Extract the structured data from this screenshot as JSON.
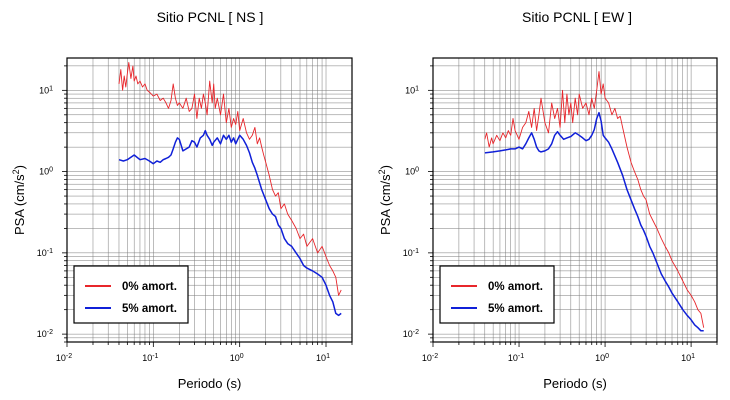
{
  "chart_data": [
    {
      "type": "line",
      "title": "Sitio PCNL [ NS ]",
      "xlabel": "Periodo (s)",
      "ylabel_main": "PSA (cm/s",
      "ylabel_sup": "2",
      "ylabel_end": ")",
      "x_scale": "log",
      "y_scale": "log",
      "xlim": [
        0.01,
        20
      ],
      "ylim": [
        0.008,
        25
      ],
      "grid": true,
      "legend_position": "bottom-left",
      "x_ticks": [
        {
          "base": "10",
          "exp": "-2",
          "value": 0.01
        },
        {
          "base": "10",
          "exp": "-1",
          "value": 0.1
        },
        {
          "base": "10",
          "exp": "0",
          "value": 1
        },
        {
          "base": "10",
          "exp": "1",
          "value": 10
        }
      ],
      "y_ticks": [
        {
          "base": "10",
          "exp": "-2",
          "value": 0.01
        },
        {
          "base": "10",
          "exp": "-1",
          "value": 0.1
        },
        {
          "base": "10",
          "exp": "0",
          "value": 1
        },
        {
          "base": "10",
          "exp": "1",
          "value": 10
        }
      ],
      "series": [
        {
          "name": "0% amort.",
          "color": "#e8262b",
          "width": 0.9,
          "x": [
            0.04,
            0.042,
            0.044,
            0.046,
            0.048,
            0.05,
            0.052,
            0.055,
            0.058,
            0.06,
            0.063,
            0.066,
            0.07,
            0.075,
            0.08,
            0.085,
            0.09,
            0.1,
            0.11,
            0.12,
            0.13,
            0.14,
            0.15,
            0.16,
            0.17,
            0.18,
            0.19,
            0.2,
            0.22,
            0.24,
            0.26,
            0.28,
            0.3,
            0.32,
            0.34,
            0.36,
            0.38,
            0.4,
            0.42,
            0.45,
            0.48,
            0.5,
            0.52,
            0.55,
            0.6,
            0.65,
            0.7,
            0.75,
            0.8,
            0.85,
            0.9,
            0.95,
            1.0,
            1.1,
            1.2,
            1.3,
            1.4,
            1.5,
            1.6,
            1.7,
            1.8,
            1.9,
            2.0,
            2.2,
            2.4,
            2.6,
            2.8,
            3.0,
            3.3,
            3.6,
            4.0,
            4.5,
            5.0,
            5.5,
            6.0,
            7.0,
            8.0,
            9.0,
            10.0,
            11.0,
            12.0,
            13.0,
            14.0,
            15.0
          ],
          "y": [
            12,
            18,
            10,
            15,
            11,
            16,
            22,
            14,
            20,
            13,
            15,
            12,
            13,
            11,
            12,
            10,
            9.5,
            8.5,
            9,
            7.5,
            8,
            7,
            6,
            7.5,
            12,
            8,
            6.5,
            7,
            6,
            8,
            5.5,
            6,
            9,
            4.5,
            8,
            6,
            9,
            7,
            5,
            13,
            7,
            12,
            6,
            8,
            5,
            9,
            4,
            6,
            3.5,
            4.5,
            3.8,
            5.5,
            3.2,
            4.5,
            3,
            2.5,
            2.8,
            3.5,
            2.2,
            2.6,
            2,
            1.6,
            1.3,
            0.9,
            0.6,
            0.5,
            0.55,
            0.35,
            0.4,
            0.3,
            0.25,
            0.2,
            0.15,
            0.17,
            0.12,
            0.15,
            0.1,
            0.12,
            0.09,
            0.07,
            0.06,
            0.05,
            0.03,
            0.035
          ]
        },
        {
          "name": "5% amort.",
          "color": "#1020d8",
          "width": 1.5,
          "x": [
            0.04,
            0.045,
            0.05,
            0.055,
            0.06,
            0.07,
            0.08,
            0.09,
            0.1,
            0.11,
            0.12,
            0.13,
            0.14,
            0.15,
            0.16,
            0.17,
            0.18,
            0.19,
            0.2,
            0.22,
            0.24,
            0.26,
            0.28,
            0.3,
            0.32,
            0.35,
            0.38,
            0.4,
            0.42,
            0.45,
            0.48,
            0.5,
            0.55,
            0.6,
            0.65,
            0.7,
            0.75,
            0.8,
            0.85,
            0.9,
            1.0,
            1.1,
            1.2,
            1.3,
            1.4,
            1.5,
            1.6,
            1.8,
            2.0,
            2.2,
            2.4,
            2.6,
            2.8,
            3.0,
            3.3,
            3.6,
            4.0,
            4.5,
            5.0,
            5.5,
            6.0,
            7.0,
            8.0,
            9.0,
            10.0,
            11.0,
            12.0,
            13.0,
            14.0,
            15.0
          ],
          "y": [
            1.4,
            1.35,
            1.4,
            1.5,
            1.6,
            1.4,
            1.45,
            1.35,
            1.25,
            1.35,
            1.3,
            1.4,
            1.45,
            1.5,
            1.6,
            1.9,
            2.3,
            2.6,
            2.5,
            1.8,
            1.9,
            2.0,
            2.4,
            2.3,
            2.0,
            2.6,
            2.8,
            3.2,
            2.8,
            2.5,
            2.1,
            2.3,
            2.6,
            2.2,
            2.8,
            2.5,
            2.8,
            2.3,
            2.6,
            2.2,
            2.8,
            2.5,
            2.1,
            1.7,
            1.3,
            1.1,
            0.9,
            0.6,
            0.45,
            0.35,
            0.3,
            0.28,
            0.22,
            0.2,
            0.15,
            0.13,
            0.12,
            0.1,
            0.085,
            0.07,
            0.065,
            0.06,
            0.055,
            0.05,
            0.04,
            0.03,
            0.025,
            0.018,
            0.017,
            0.018
          ]
        }
      ]
    },
    {
      "type": "line",
      "title": "Sitio PCNL [ EW ]",
      "xlabel": "Periodo (s)",
      "ylabel_main": "PSA (cm/s",
      "ylabel_sup": "2",
      "ylabel_end": ")",
      "x_scale": "log",
      "y_scale": "log",
      "xlim": [
        0.01,
        20
      ],
      "ylim": [
        0.008,
        25
      ],
      "grid": true,
      "legend_position": "bottom-left",
      "x_ticks": [
        {
          "base": "10",
          "exp": "-2",
          "value": 0.01
        },
        {
          "base": "10",
          "exp": "-1",
          "value": 0.1
        },
        {
          "base": "10",
          "exp": "0",
          "value": 1
        },
        {
          "base": "10",
          "exp": "1",
          "value": 10
        }
      ],
      "y_ticks": [
        {
          "base": "10",
          "exp": "-2",
          "value": 0.01
        },
        {
          "base": "10",
          "exp": "-1",
          "value": 0.1
        },
        {
          "base": "10",
          "exp": "0",
          "value": 1
        },
        {
          "base": "10",
          "exp": "1",
          "value": 10
        }
      ],
      "series": [
        {
          "name": "0% amort.",
          "color": "#e8262b",
          "width": 0.9,
          "x": [
            0.04,
            0.042,
            0.045,
            0.048,
            0.05,
            0.055,
            0.06,
            0.065,
            0.07,
            0.075,
            0.08,
            0.085,
            0.09,
            0.1,
            0.11,
            0.12,
            0.13,
            0.14,
            0.15,
            0.16,
            0.17,
            0.18,
            0.2,
            0.22,
            0.24,
            0.26,
            0.28,
            0.3,
            0.32,
            0.34,
            0.36,
            0.38,
            0.4,
            0.42,
            0.45,
            0.48,
            0.5,
            0.55,
            0.6,
            0.65,
            0.7,
            0.75,
            0.8,
            0.85,
            0.9,
            0.95,
            1.0,
            1.1,
            1.2,
            1.3,
            1.4,
            1.5,
            1.6,
            1.8,
            2.0,
            2.2,
            2.4,
            2.6,
            2.8,
            3.0,
            3.3,
            3.6,
            4.0,
            4.5,
            5.0,
            5.5,
            6.0,
            7.0,
            8.0,
            9.0,
            10.0,
            11.0,
            12.0,
            13.0,
            14.0
          ],
          "y": [
            2.5,
            3.0,
            2.0,
            2.6,
            2.2,
            2.8,
            2.4,
            3.0,
            2.6,
            3.2,
            2.8,
            4.5,
            3.2,
            2.5,
            3.5,
            4,
            5.5,
            3.5,
            6,
            3.2,
            5,
            8,
            4,
            3,
            7,
            4.5,
            6,
            3.5,
            10,
            4,
            9,
            5,
            7,
            4,
            8,
            5,
            9,
            6,
            7,
            5,
            8,
            6,
            10,
            17,
            9,
            12,
            8,
            7,
            5,
            6,
            4.5,
            4.8,
            3.5,
            2,
            1.3,
            1.0,
            0.8,
            0.6,
            0.5,
            0.45,
            0.3,
            0.25,
            0.2,
            0.15,
            0.12,
            0.1,
            0.08,
            0.06,
            0.045,
            0.035,
            0.03,
            0.025,
            0.02,
            0.018,
            0.012
          ]
        },
        {
          "name": "5% amort.",
          "color": "#1020d8",
          "width": 1.5,
          "x": [
            0.04,
            0.05,
            0.06,
            0.07,
            0.08,
            0.09,
            0.1,
            0.11,
            0.12,
            0.13,
            0.14,
            0.15,
            0.16,
            0.17,
            0.18,
            0.2,
            0.22,
            0.24,
            0.26,
            0.28,
            0.3,
            0.33,
            0.36,
            0.4,
            0.45,
            0.5,
            0.55,
            0.6,
            0.65,
            0.7,
            0.75,
            0.8,
            0.85,
            0.9,
            0.95,
            1.0,
            1.1,
            1.2,
            1.4,
            1.6,
            1.8,
            2.0,
            2.2,
            2.4,
            2.6,
            2.8,
            3.0,
            3.3,
            3.6,
            4.0,
            4.5,
            5.0,
            5.5,
            6.0,
            7.0,
            8.0,
            9.0,
            10.0,
            11.0,
            12.0,
            13.0,
            14.0
          ],
          "y": [
            1.7,
            1.75,
            1.8,
            1.85,
            1.9,
            1.9,
            2.0,
            1.9,
            2.2,
            2.6,
            3.0,
            2.5,
            2.0,
            1.8,
            1.75,
            1.8,
            1.9,
            2.2,
            2.8,
            3.1,
            2.8,
            2.5,
            2.6,
            2.7,
            3.0,
            2.8,
            2.6,
            2.4,
            2.5,
            2.8,
            3.3,
            4.5,
            5.3,
            4.2,
            2.8,
            2.6,
            2.3,
            1.9,
            1.3,
            0.9,
            0.6,
            0.45,
            0.35,
            0.28,
            0.22,
            0.19,
            0.16,
            0.12,
            0.1,
            0.075,
            0.055,
            0.045,
            0.038,
            0.032,
            0.025,
            0.02,
            0.017,
            0.015,
            0.013,
            0.012,
            0.011,
            0.011
          ]
        }
      ]
    }
  ]
}
